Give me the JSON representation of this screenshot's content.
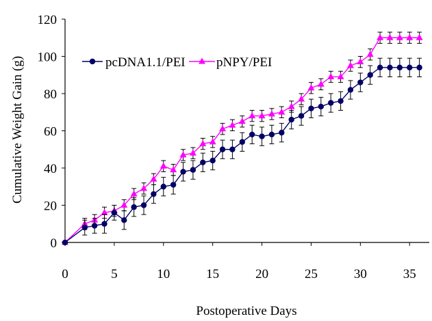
{
  "chart_data": {
    "type": "line",
    "title": "",
    "xlabel": "Postoperative Days",
    "ylabel": "Cumulative  Weight  Gain  (g)",
    "xlim": [
      0,
      37
    ],
    "ylim": [
      0,
      120
    ],
    "x_ticks": [
      0,
      5,
      10,
      15,
      20,
      25,
      30,
      35
    ],
    "y_ticks": [
      0,
      20,
      40,
      60,
      80,
      100,
      120
    ],
    "grid": false,
    "legend_position": "top-left",
    "x": [
      0,
      2,
      3,
      4,
      5,
      6,
      7,
      8,
      9,
      10,
      11,
      12,
      13,
      14,
      15,
      16,
      17,
      18,
      19,
      20,
      21,
      22,
      23,
      24,
      25,
      26,
      27,
      28,
      29,
      30,
      31,
      32,
      33,
      34,
      35,
      36
    ],
    "series": [
      {
        "name": "pcDNA1.1/PEI",
        "color": "#000066",
        "marker": "circle",
        "values": [
          0,
          8,
          9,
          10,
          16,
          12,
          19,
          20,
          26,
          30,
          31,
          38,
          39,
          43,
          44,
          50,
          50,
          54,
          58,
          57,
          58,
          59,
          66,
          68,
          72,
          73,
          75,
          76,
          82,
          86,
          90,
          94,
          94,
          94,
          94,
          94
        ],
        "error": [
          0,
          4,
          4,
          5,
          4,
          5,
          5,
          5,
          5,
          5,
          5,
          5,
          5,
          5,
          5,
          5,
          5,
          5,
          5,
          5,
          5,
          5,
          5,
          5,
          5,
          5,
          5,
          5,
          5,
          5,
          5,
          5,
          5,
          5,
          5,
          5
        ]
      },
      {
        "name": "pNPY/PEI",
        "color": "#ff00ff",
        "marker": "triangle",
        "values": [
          0,
          10,
          12,
          16,
          17,
          20,
          26,
          29,
          34,
          41,
          39,
          47,
          48,
          53,
          54,
          61,
          63,
          65,
          68,
          68,
          69,
          70,
          73,
          77,
          83,
          85,
          89,
          89,
          95,
          97,
          101,
          110,
          110,
          110,
          110,
          110
        ],
        "error": [
          0,
          3,
          3,
          3,
          3,
          3,
          3,
          3,
          3,
          3,
          3,
          3,
          3,
          3,
          3,
          3,
          3,
          3,
          3,
          3,
          3,
          3,
          3,
          3,
          3,
          3,
          3,
          3,
          3,
          3,
          3,
          3,
          3,
          3,
          3,
          3
        ]
      }
    ]
  }
}
